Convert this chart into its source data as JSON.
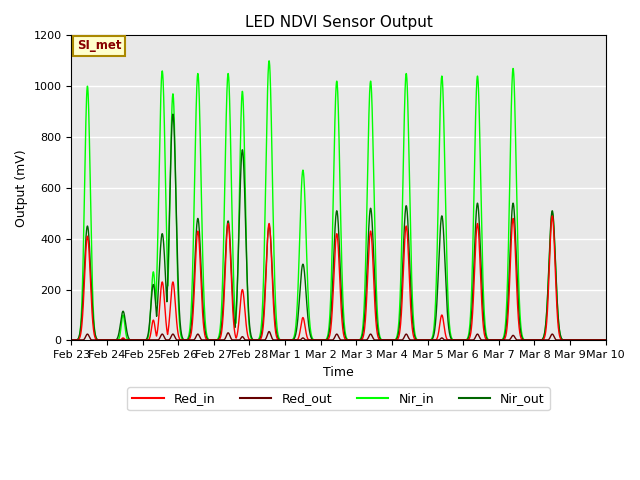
{
  "title": "LED NDVI Sensor Output",
  "xlabel": "Time",
  "ylabel": "Output (mV)",
  "ylim": [
    0,
    1200
  ],
  "annotation_text": "SI_met",
  "annotation_bg": "#ffffcc",
  "annotation_border": "#aa8800",
  "plot_bg": "#e8e8e8",
  "fig_bg": "#ffffff",
  "grid_color": "#ffffff",
  "legend_entries": [
    "Red_in",
    "Red_out",
    "Nir_in",
    "Nir_out"
  ],
  "legend_colors": [
    "#ff0000",
    "#660000",
    "#00ff00",
    "#006600"
  ],
  "x_tick_labels": [
    "Feb 23",
    "Feb 24",
    "Feb 25",
    "Feb 26",
    "Feb 27",
    "Feb 28",
    "Mar 1",
    "Mar 2",
    "Mar 3",
    "Mar 4",
    "Mar 5",
    "Mar 6",
    "Mar 7",
    "Mar 8",
    "Mar 9",
    "Mar 10"
  ],
  "x_tick_positions": [
    0,
    1,
    2,
    3,
    4,
    5,
    6,
    7,
    8,
    9,
    10,
    11,
    12,
    13,
    14,
    15
  ],
  "num_days": 16,
  "xlim": [
    0,
    15
  ],
  "series": {
    "Red_in": {
      "color": "#ff0000",
      "lw": 1.0
    },
    "Red_out": {
      "color": "#660000",
      "lw": 1.0
    },
    "Nir_in": {
      "color": "#00ff00",
      "lw": 1.0
    },
    "Nir_out": {
      "color": "#006600",
      "lw": 1.0
    }
  }
}
